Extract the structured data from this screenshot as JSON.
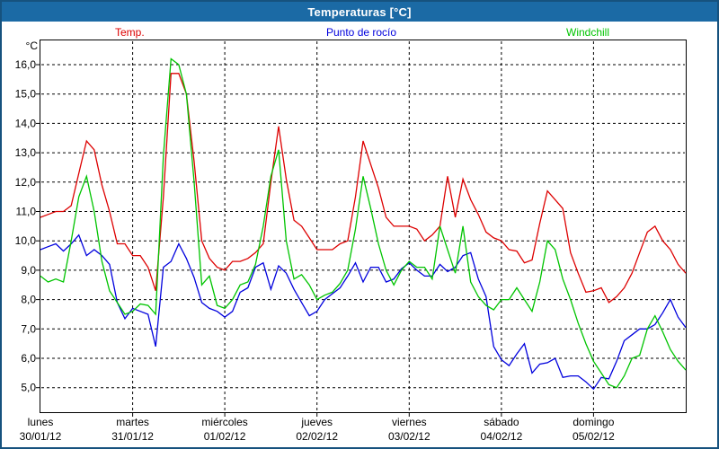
{
  "window": {
    "title": "Temperaturas [°C]"
  },
  "colors": {
    "titlebar": "#1b6aa5",
    "window_border": "#16527e",
    "plot_frame": "#000000",
    "grid": "#000000",
    "background": "#ffffff"
  },
  "chart_data": {
    "type": "line",
    "title": "Temperaturas [°C]",
    "legend_position": "top",
    "y_axis": {
      "unit_label": "°C",
      "min": 5.0,
      "max": 16.0,
      "tick_step": 1.0,
      "grid": "dashed",
      "ticks": [
        {
          "value": 16,
          "label": "16,0"
        },
        {
          "value": 15,
          "label": "15,0"
        },
        {
          "value": 14,
          "label": "14,0"
        },
        {
          "value": 13,
          "label": "13,0"
        },
        {
          "value": 12,
          "label": "12,0"
        },
        {
          "value": 11,
          "label": "11,0"
        },
        {
          "value": 10,
          "label": "10,0"
        },
        {
          "value": 9,
          "label": "9,0"
        },
        {
          "value": 8,
          "label": "8,0"
        },
        {
          "value": 7,
          "label": "7,0"
        },
        {
          "value": 6,
          "label": "6,0"
        },
        {
          "value": 5,
          "label": "5,0"
        }
      ]
    },
    "x_axis": {
      "span_days": 7,
      "grid": "dashed vertical line at each midnight",
      "days": [
        {
          "name": "lunes",
          "date": "30/01/12"
        },
        {
          "name": "martes",
          "date": "31/01/12"
        },
        {
          "name": "miércoles",
          "date": "01/02/12"
        },
        {
          "name": "jueves",
          "date": "02/02/12"
        },
        {
          "name": "viernes",
          "date": "03/02/12"
        },
        {
          "name": "sábado",
          "date": "04/02/12"
        },
        {
          "name": "domingo",
          "date": "05/02/12"
        }
      ]
    },
    "sampling": {
      "interval_hours": 2,
      "start": "lunes 30/01/12 00:00",
      "end": "domingo 05/02/12 24:00"
    },
    "series": [
      {
        "name": "Temp.",
        "color": "#dd0000",
        "values": [
          10.8,
          10.9,
          11.0,
          11.0,
          11.2,
          12.3,
          13.4,
          13.1,
          11.9,
          11.0,
          9.9,
          9.9,
          9.5,
          9.5,
          9.1,
          8.3,
          11.5,
          15.7,
          15.7,
          15.0,
          12.7,
          10.0,
          9.4,
          9.1,
          9.0,
          9.3,
          9.3,
          9.4,
          9.6,
          9.9,
          12.0,
          13.9,
          12.1,
          10.7,
          10.5,
          10.1,
          9.7,
          9.7,
          9.7,
          9.9,
          10.0,
          11.5,
          13.4,
          12.6,
          11.8,
          10.8,
          10.5,
          10.5,
          10.5,
          10.4,
          10.0,
          10.2,
          10.5,
          12.2,
          10.8,
          12.1,
          11.4,
          10.9,
          10.3,
          10.1,
          10.0,
          9.7,
          9.65,
          9.25,
          9.35,
          10.6,
          11.7,
          11.4,
          11.1,
          9.6,
          8.9,
          8.25,
          8.3,
          8.4,
          7.9,
          8.1,
          8.4,
          8.9,
          9.6,
          10.3,
          10.5,
          10.0,
          9.7,
          9.2,
          8.9
        ]
      },
      {
        "name": "Punto de rocío",
        "color": "#0000dd",
        "values": [
          9.7,
          9.8,
          9.9,
          9.65,
          9.9,
          10.2,
          9.5,
          9.7,
          9.5,
          9.2,
          7.9,
          7.35,
          7.7,
          7.6,
          7.5,
          6.4,
          9.1,
          9.3,
          9.9,
          9.4,
          8.75,
          7.9,
          7.7,
          7.6,
          7.4,
          7.6,
          8.25,
          8.4,
          9.1,
          9.25,
          8.35,
          9.15,
          8.9,
          8.35,
          7.9,
          7.45,
          7.6,
          8.0,
          8.2,
          8.4,
          8.8,
          9.25,
          8.6,
          9.1,
          9.1,
          8.6,
          8.7,
          9.05,
          9.25,
          9.0,
          8.8,
          8.8,
          9.2,
          8.95,
          9.1,
          9.5,
          9.6,
          8.7,
          8.1,
          6.4,
          5.95,
          5.75,
          6.15,
          6.5,
          5.5,
          5.8,
          5.85,
          6.0,
          5.35,
          5.4,
          5.4,
          5.2,
          4.95,
          5.35,
          5.3,
          5.9,
          6.6,
          6.8,
          7.0,
          7.0,
          7.15,
          7.55,
          8.0,
          7.4,
          7.05
        ]
      },
      {
        "name": "Windchill",
        "color": "#00c400",
        "values": [
          8.8,
          8.6,
          8.7,
          8.6,
          10.0,
          11.5,
          12.2,
          11.0,
          9.3,
          8.3,
          7.9,
          7.5,
          7.6,
          7.85,
          7.8,
          7.5,
          12.9,
          16.2,
          16.0,
          15.0,
          12.0,
          8.5,
          8.8,
          7.8,
          7.7,
          8.0,
          8.5,
          8.6,
          9.2,
          10.5,
          12.2,
          13.1,
          10.0,
          8.7,
          8.85,
          8.5,
          8.0,
          8.15,
          8.25,
          8.55,
          9.0,
          10.4,
          12.2,
          11.1,
          9.9,
          9.0,
          8.5,
          9.0,
          9.3,
          9.1,
          9.1,
          8.7,
          10.5,
          9.7,
          8.9,
          10.5,
          8.6,
          8.1,
          7.8,
          7.65,
          8.0,
          8.0,
          8.4,
          8.0,
          7.6,
          8.6,
          10.0,
          9.7,
          8.7,
          8.0,
          7.2,
          6.5,
          5.9,
          5.5,
          5.1,
          5.0,
          5.4,
          6.0,
          6.1,
          7.0,
          7.45,
          6.9,
          6.3,
          5.9,
          5.6
        ]
      }
    ]
  }
}
